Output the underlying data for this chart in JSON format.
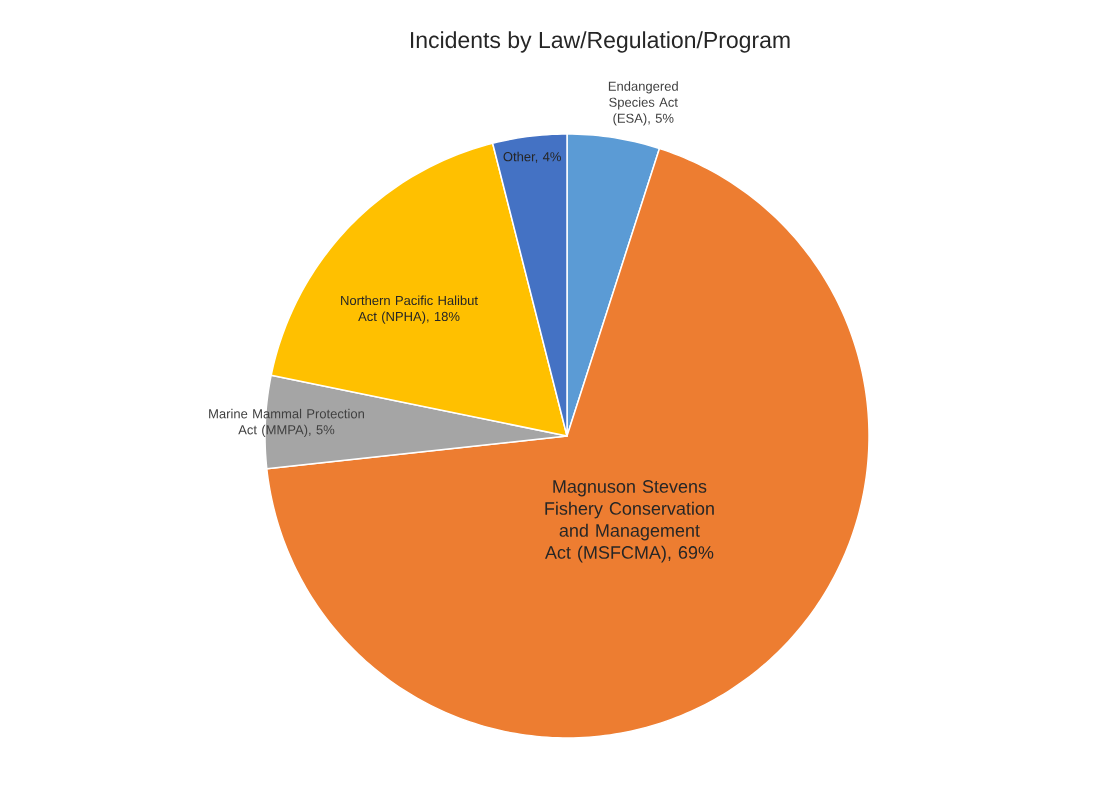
{
  "chart_data": {
    "type": "pie",
    "title": "Incidents by Law/Regulation/Program",
    "categories": [
      "Endangered Species Act (ESA), 5%",
      "Magnuson Stevens Fishery Conservation and Management Act (MSFCMA), 69%",
      "Marine Mammal Protection Act (MMPA), 5%",
      "Northern Pacific Halibut Act (NPHA), 18%",
      "Other, 4%"
    ],
    "values": [
      5,
      69,
      5,
      18,
      4
    ],
    "colors": [
      "#5b9bd5",
      "#ed7d31",
      "#a5a5a5",
      "#ffc000",
      "#4472c4"
    ]
  }
}
